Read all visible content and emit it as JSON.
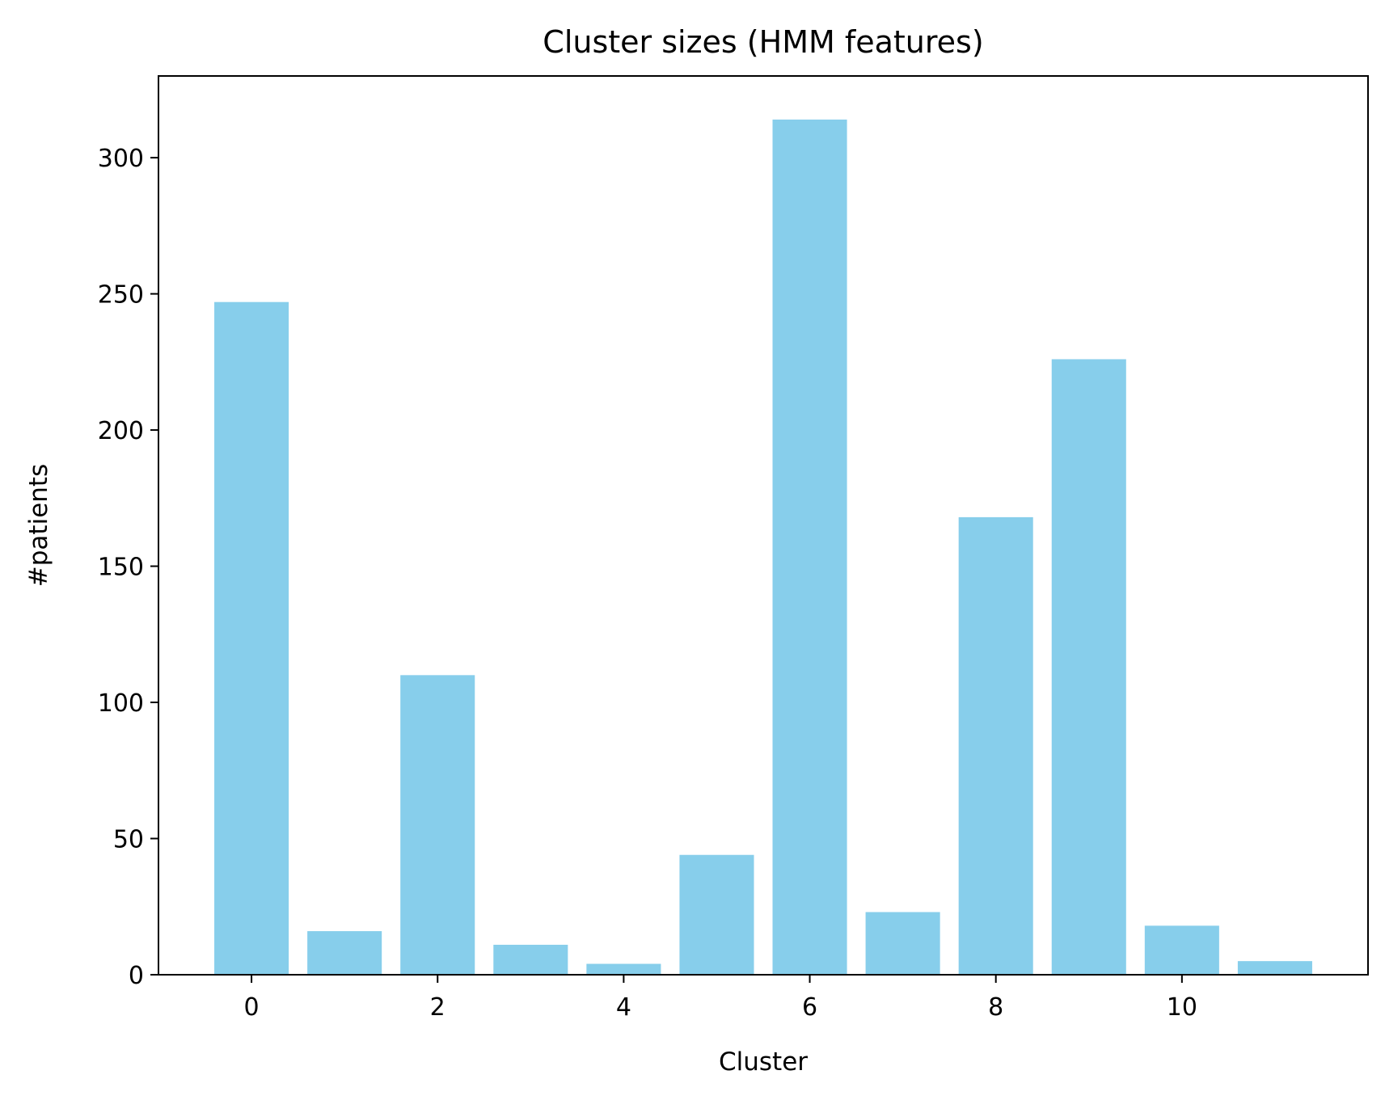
{
  "chart_data": {
    "type": "bar",
    "title": "Cluster sizes (HMM features)",
    "xlabel": "Cluster",
    "ylabel": "#patients",
    "categories": [
      0,
      1,
      2,
      3,
      4,
      5,
      6,
      7,
      8,
      9,
      10,
      11
    ],
    "values": [
      247,
      16,
      110,
      11,
      4,
      44,
      314,
      23,
      168,
      226,
      18,
      5
    ],
    "bar_color": "#87ceeb",
    "xlim": [
      -1,
      12
    ],
    "ylim": [
      0,
      330
    ],
    "x_ticks": [
      0,
      2,
      4,
      6,
      8,
      10
    ],
    "x_tick_labels": [
      "0",
      "2",
      "4",
      "6",
      "8",
      "10"
    ],
    "y_ticks": [
      0,
      50,
      100,
      150,
      200,
      250,
      300
    ],
    "y_tick_labels": [
      "0",
      "50",
      "100",
      "150",
      "200",
      "250",
      "300"
    ],
    "grid": false,
    "legend": "none"
  }
}
